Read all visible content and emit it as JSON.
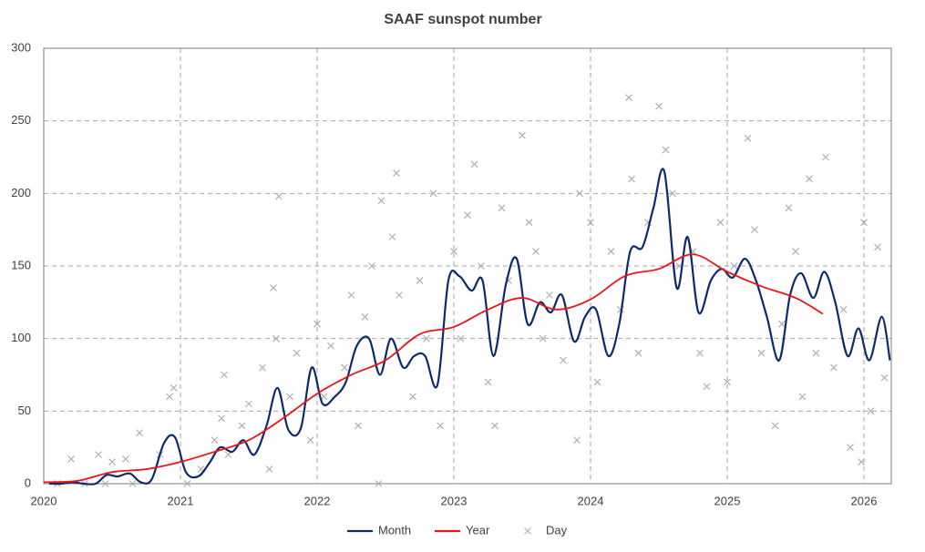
{
  "chart_data": {
    "type": "line",
    "title": "SAAF sunspot number",
    "xlim": [
      2020,
      2026.2
    ],
    "xticks": [
      2020,
      2021,
      2022,
      2023,
      2024,
      2025,
      2026
    ],
    "ylim": [
      0,
      300
    ],
    "yticks": [
      0,
      50,
      100,
      150,
      200,
      250,
      300
    ],
    "grid": true,
    "legend": "bottom",
    "series": [
      {
        "name": "Month",
        "color": "#0d2a6b",
        "style": "line",
        "x": [
          2020.04,
          2020.13,
          2020.21,
          2020.29,
          2020.38,
          2020.46,
          2020.54,
          2020.63,
          2020.71,
          2020.79,
          2020.88,
          2020.96,
          2021.04,
          2021.13,
          2021.21,
          2021.29,
          2021.38,
          2021.46,
          2021.54,
          2021.63,
          2021.71,
          2021.79,
          2021.88,
          2021.96,
          2022.04,
          2022.13,
          2022.21,
          2022.29,
          2022.38,
          2022.46,
          2022.54,
          2022.63,
          2022.71,
          2022.79,
          2022.88,
          2022.96,
          2023.04,
          2023.13,
          2023.21,
          2023.29,
          2023.38,
          2023.46,
          2023.54,
          2023.63,
          2023.71,
          2023.79,
          2023.88,
          2023.96,
          2024.04,
          2024.13,
          2024.21,
          2024.29,
          2024.38,
          2024.46,
          2024.54,
          2024.63,
          2024.71,
          2024.79,
          2024.88,
          2024.96,
          2025.04,
          2025.13,
          2025.21,
          2025.29,
          2025.38,
          2025.46,
          2025.54,
          2025.63,
          2025.71,
          2025.79,
          2025.88,
          2025.96,
          2026.04,
          2026.13,
          2026.19
        ],
        "values": [
          0,
          0,
          1,
          0,
          0,
          6,
          5,
          7,
          1,
          3,
          28,
          32,
          8,
          5,
          14,
          25,
          22,
          30,
          20,
          40,
          66,
          37,
          38,
          80,
          55,
          60,
          70,
          95,
          100,
          75,
          100,
          80,
          88,
          88,
          68,
          140,
          143,
          133,
          140,
          88,
          137,
          155,
          110,
          125,
          118,
          130,
          98,
          115,
          120,
          88,
          110,
          160,
          163,
          190,
          215,
          135,
          170,
          118,
          140,
          148,
          142,
          155,
          140,
          115,
          85,
          130,
          145,
          128,
          146,
          125,
          88,
          107,
          85,
          115,
          85
        ]
      },
      {
        "name": "Year",
        "color": "#e8161b",
        "style": "line",
        "x": [
          2020.0,
          2020.25,
          2020.5,
          2020.75,
          2021.0,
          2021.25,
          2021.5,
          2021.75,
          2022.0,
          2022.25,
          2022.5,
          2022.75,
          2023.0,
          2023.25,
          2023.5,
          2023.75,
          2024.0,
          2024.25,
          2024.5,
          2024.75,
          2025.0,
          2025.25,
          2025.5,
          2025.7
        ],
        "values": [
          1,
          2,
          8,
          10,
          15,
          22,
          30,
          45,
          62,
          75,
          85,
          103,
          108,
          120,
          128,
          120,
          127,
          143,
          148,
          158,
          146,
          136,
          128,
          117
        ]
      },
      {
        "name": "Day",
        "color": "#b0b0b0",
        "style": "scatter",
        "x": [
          2020.1,
          2020.2,
          2020.3,
          2020.4,
          2020.45,
          2020.5,
          2020.6,
          2020.65,
          2020.7,
          2020.85,
          2020.92,
          2020.95,
          2021.05,
          2021.15,
          2021.25,
          2021.3,
          2021.32,
          2021.35,
          2021.45,
          2021.5,
          2021.6,
          2021.65,
          2021.68,
          2021.7,
          2021.72,
          2021.8,
          2021.85,
          2021.95,
          2022.0,
          2022.05,
          2022.1,
          2022.2,
          2022.25,
          2022.3,
          2022.35,
          2022.4,
          2022.45,
          2022.47,
          2022.55,
          2022.58,
          2022.6,
          2022.7,
          2022.75,
          2022.8,
          2022.85,
          2022.9,
          2023.0,
          2023.05,
          2023.1,
          2023.15,
          2023.2,
          2023.25,
          2023.3,
          2023.35,
          2023.4,
          2023.5,
          2023.55,
          2023.6,
          2023.65,
          2023.7,
          2023.8,
          2023.9,
          2023.92,
          2024.0,
          2024.05,
          2024.15,
          2024.22,
          2024.28,
          2024.3,
          2024.35,
          2024.42,
          2024.5,
          2024.55,
          2024.6,
          2024.65,
          2024.75,
          2024.8,
          2024.85,
          2024.95,
          2025.0,
          2025.05,
          2025.15,
          2025.2,
          2025.25,
          2025.35,
          2025.4,
          2025.45,
          2025.5,
          2025.55,
          2025.6,
          2025.65,
          2025.72,
          2025.78,
          2025.85,
          2025.9,
          2025.98,
          2026.0,
          2026.05,
          2026.1,
          2026.15
        ],
        "values": [
          0,
          17,
          0,
          20,
          0,
          15,
          17,
          0,
          35,
          20,
          60,
          66,
          0,
          10,
          30,
          45,
          75,
          20,
          40,
          55,
          80,
          10,
          135,
          100,
          198,
          60,
          90,
          30,
          110,
          60,
          95,
          80,
          130,
          40,
          115,
          150,
          0,
          195,
          170,
          214,
          130,
          60,
          140,
          100,
          200,
          40,
          160,
          100,
          185,
          220,
          150,
          70,
          40,
          190,
          140,
          240,
          180,
          160,
          100,
          130,
          85,
          30,
          200,
          180,
          70,
          160,
          120,
          266,
          210,
          90,
          180,
          260,
          230,
          200,
          150,
          160,
          90,
          67,
          180,
          70,
          150,
          238,
          175,
          90,
          40,
          110,
          190,
          160,
          60,
          210,
          90,
          225,
          80,
          120,
          25,
          15,
          180,
          50,
          163,
          73
        ]
      }
    ]
  }
}
